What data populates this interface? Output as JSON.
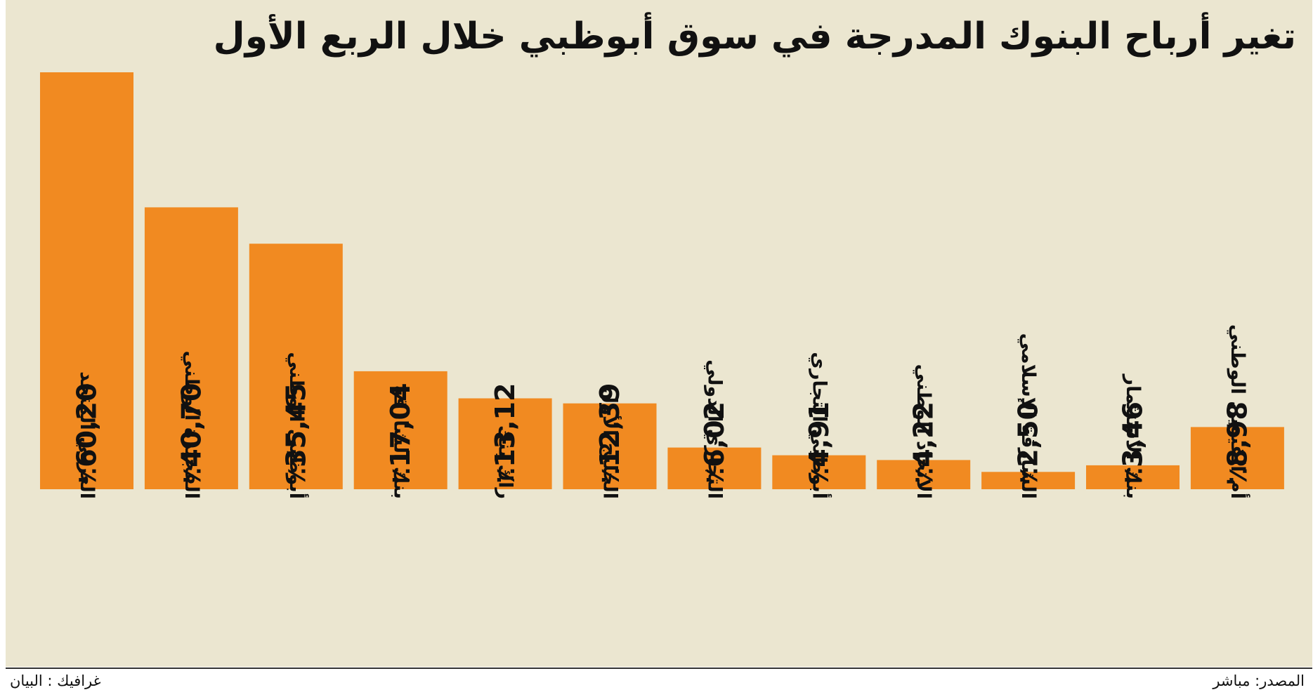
{
  "chart_data": {
    "type": "bar",
    "title": "تغير أرباح البنوك المدرجة في سوق أبوظبي خلال الربع الأول",
    "categories": [
      "العربي المتحد",
      "الفجيرة الوطني",
      "أبوظبي الوطني",
      "بنك الشارقة",
      "راك بنك",
      "الخليج الأول",
      "التجاري الدولي",
      "أبوظبي التجاري",
      "الاتحاد الوطني",
      "الشارقة الإسلامي",
      "بنك الاستثمار",
      "أم القيوين الوطني"
    ],
    "values": [
      60.2,
      40.7,
      35.45,
      17.04,
      13.12,
      12.39,
      6.02,
      4.91,
      4.22,
      2.5,
      3.46,
      8.98
    ],
    "value_labels": [
      "٪60,20",
      "٪40,70",
      "٪35,45",
      "٪17,04",
      "٪13,12",
      "٪12,39",
      "٪6,02",
      "٪4,91",
      "٪4,22",
      "٪2,50",
      "٪3,46",
      "٪8,98"
    ],
    "unit": "%",
    "ylim": [
      0,
      60.2
    ],
    "grid": false,
    "legend": "none",
    "bar_color": "#f18a21",
    "background_color": "#ebe6d0",
    "value_label_orientation": "vertical",
    "category_label_orientation": "vertical"
  },
  "footer": {
    "source": "المصدر: مباشر",
    "credit": "غرافيك : البيان"
  }
}
